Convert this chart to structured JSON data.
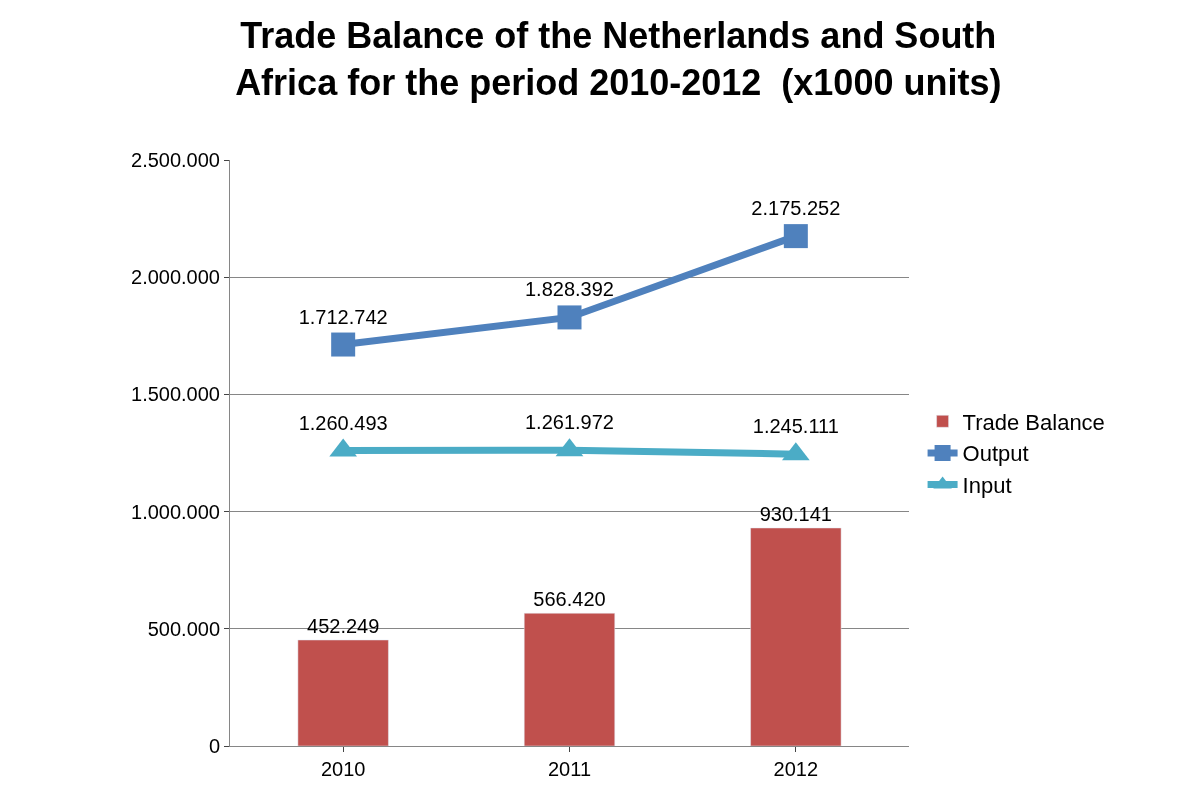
{
  "chart_data": {
    "type": "bar",
    "title": "Trade Balance of the Netherlands and South Africa for the period 2010-2012  (x1000 units)",
    "categories": [
      "2010",
      "2011",
      "2012"
    ],
    "series": [
      {
        "name": "Trade Balance",
        "color": "#c0504d",
        "values": [
          452249,
          566420,
          930141
        ],
        "value_labels": [
          "452.249",
          "566.420",
          "930.141"
        ]
      },
      {
        "name": "Output",
        "type": "line",
        "color": "#4f81bd",
        "marker": "square",
        "values": [
          1712742,
          1828392,
          2175252
        ],
        "value_labels": [
          "1.712.742",
          "1.828.392",
          "2.175.252"
        ]
      },
      {
        "name": "Input",
        "type": "line",
        "color": "#4bacc6",
        "marker": "triangle",
        "values": [
          1260493,
          1261972,
          1245111
        ],
        "value_labels": [
          "1.260.493",
          "1.261.972",
          "1.245.111"
        ]
      }
    ],
    "ylim": [
      0,
      2500000
    ],
    "yticks": [
      0,
      {
        "value": 500000,
        "label": "500.000"
      },
      {
        "value": 1000000,
        "label": "1.000.000"
      },
      {
        "value": 1500000,
        "label": "1.500.000"
      },
      {
        "value": 2000000,
        "label": "2.000.000"
      },
      {
        "value": 2500000,
        "label": "2.500.000"
      }
    ],
    "grid": "y",
    "legend": "right"
  }
}
